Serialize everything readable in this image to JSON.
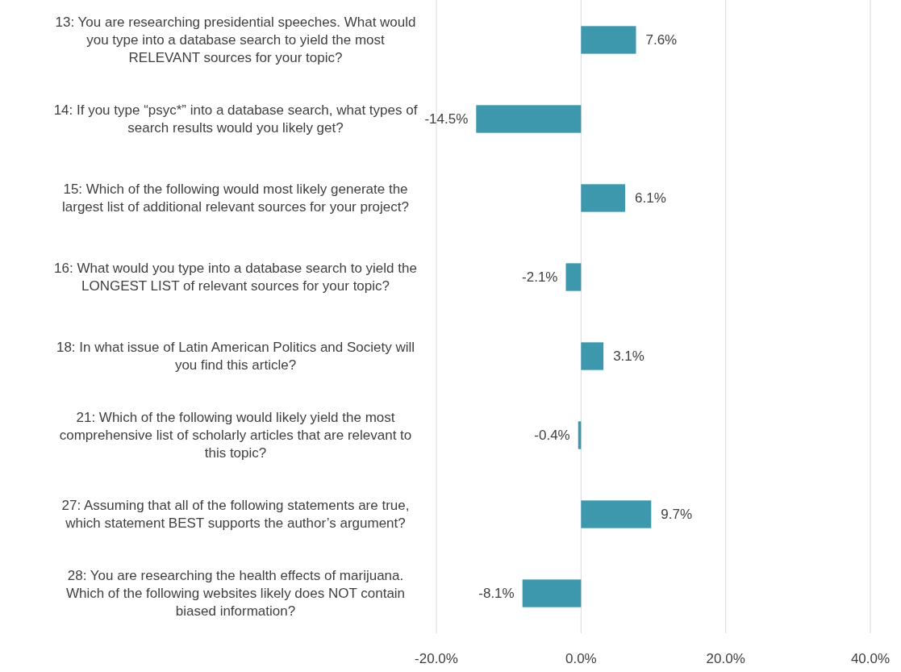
{
  "chart_data": {
    "type": "bar",
    "orientation": "horizontal",
    "categories": [
      "13: You are researching presidential speeches. What would you type into a database search to yield the most RELEVANT sources for your topic?",
      "14: If you type “psyc*” into a database search, what types of search results would you likely get?",
      "15: Which of the following would most likely generate the largest list of additional relevant sources for your project?",
      "16: What would you type into a database search to yield the LONGEST LIST of relevant sources for your topic?",
      "18: In what issue of Latin American Politics and Society will you find this article?",
      "21: Which of the following would likely yield the most comprehensive list of scholarly articles that are relevant to this topic?",
      "27: Assuming that all of the following statements are true, which statement BEST supports the author’s argument?",
      "28: You are researching the health effects of marijuana. Which of the following websites likely does NOT contain biased information?"
    ],
    "values": [
      7.6,
      -14.5,
      6.1,
      -2.1,
      3.1,
      -0.4,
      9.7,
      -8.1
    ],
    "value_labels": [
      "7.6%",
      "-14.5%",
      "6.1%",
      "-2.1%",
      "3.1%",
      "-0.4%",
      "9.7%",
      "-8.1%"
    ],
    "color": "#3d98ae",
    "xlim": [
      -20,
      40
    ],
    "xticks": [
      {
        "value": -20,
        "label": "-20.0%"
      },
      {
        "value": 0,
        "label": "0.0%"
      },
      {
        "value": 20,
        "label": "20.0%"
      },
      {
        "value": 40,
        "label": "40.0%"
      }
    ],
    "grid": "x"
  }
}
